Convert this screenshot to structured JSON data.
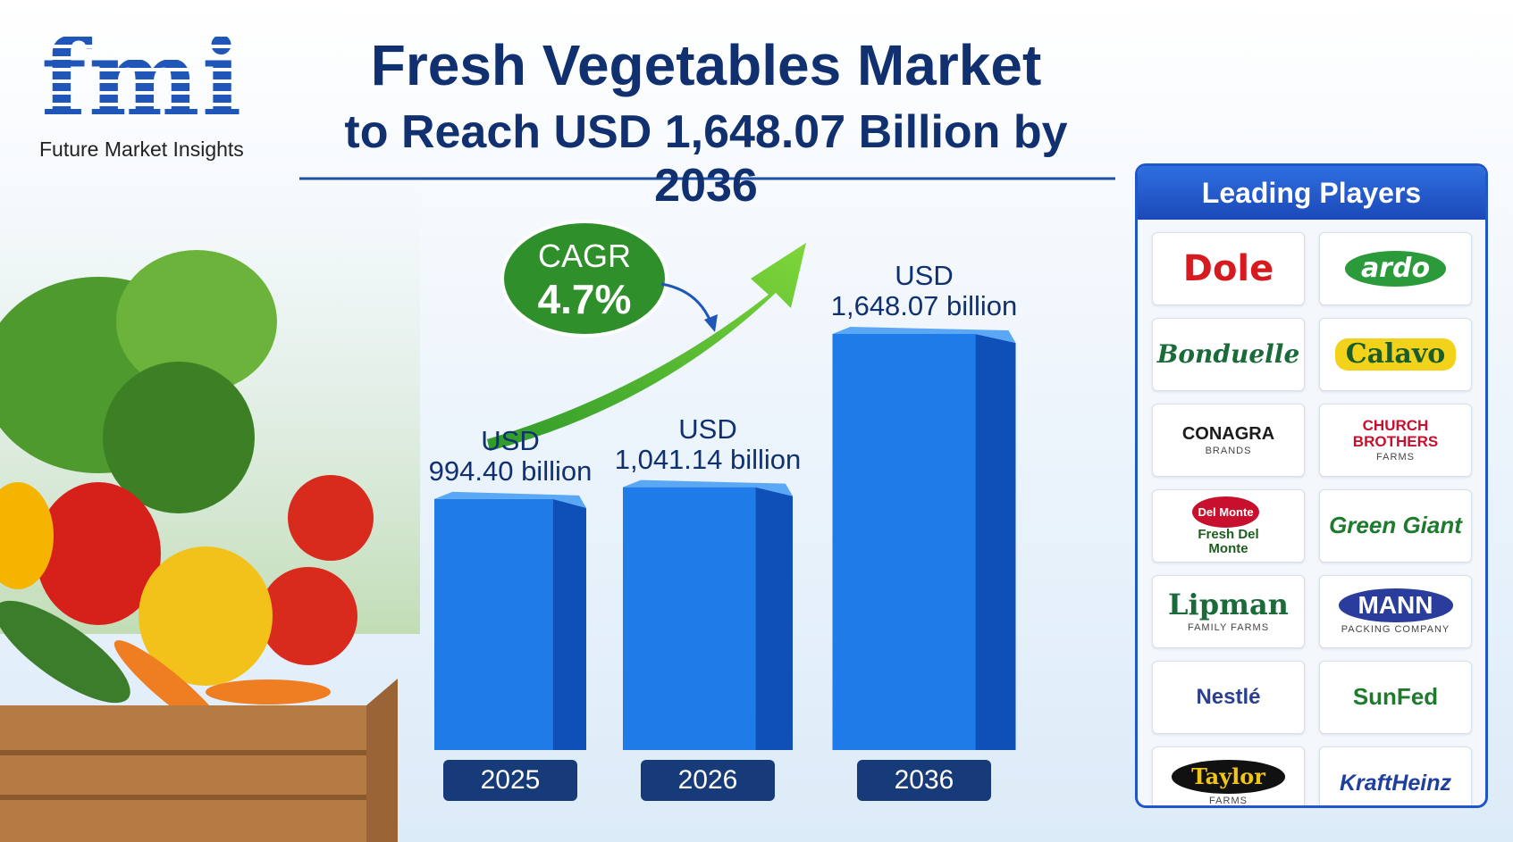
{
  "header": {
    "logo": "fmi",
    "logo_caption": "Future Market Insights",
    "title": "Fresh Vegetables Market",
    "subtitle": "to Reach USD 1,648.07 Billion by 2036"
  },
  "cagr": {
    "label": "CAGR",
    "value": "4.7%"
  },
  "chart_data": {
    "type": "bar",
    "categories": [
      "2025",
      "2026",
      "2036"
    ],
    "values": [
      994.4,
      1041.14,
      1648.07
    ],
    "value_labels": [
      "USD\n994.40 billion",
      "USD\n1,041.14 billion",
      "USD\n1,648.07 billion"
    ],
    "color": "#1f7be8"
  },
  "leading_players": {
    "title": "Leading Players",
    "players": [
      {
        "name": "Dole"
      },
      {
        "name": "ardo"
      },
      {
        "name": "Bonduelle"
      },
      {
        "name": "Calavo"
      },
      {
        "name": "CONAGRA",
        "sub": "BRANDS"
      },
      {
        "name": "CHURCH BROTHERS",
        "sub": "FARMS"
      },
      {
        "badge": "Del Monte",
        "name": "Fresh Del Monte"
      },
      {
        "name": "Green Giant"
      },
      {
        "name": "Lipman",
        "sub": "FAMILY FARMS"
      },
      {
        "name": "MANN",
        "sub": "PACKING COMPANY"
      },
      {
        "name": "Nestlé"
      },
      {
        "name": "SunFed"
      },
      {
        "name": "Taylor",
        "sub": "FARMS"
      },
      {
        "name": "KraftHeinz"
      }
    ]
  }
}
